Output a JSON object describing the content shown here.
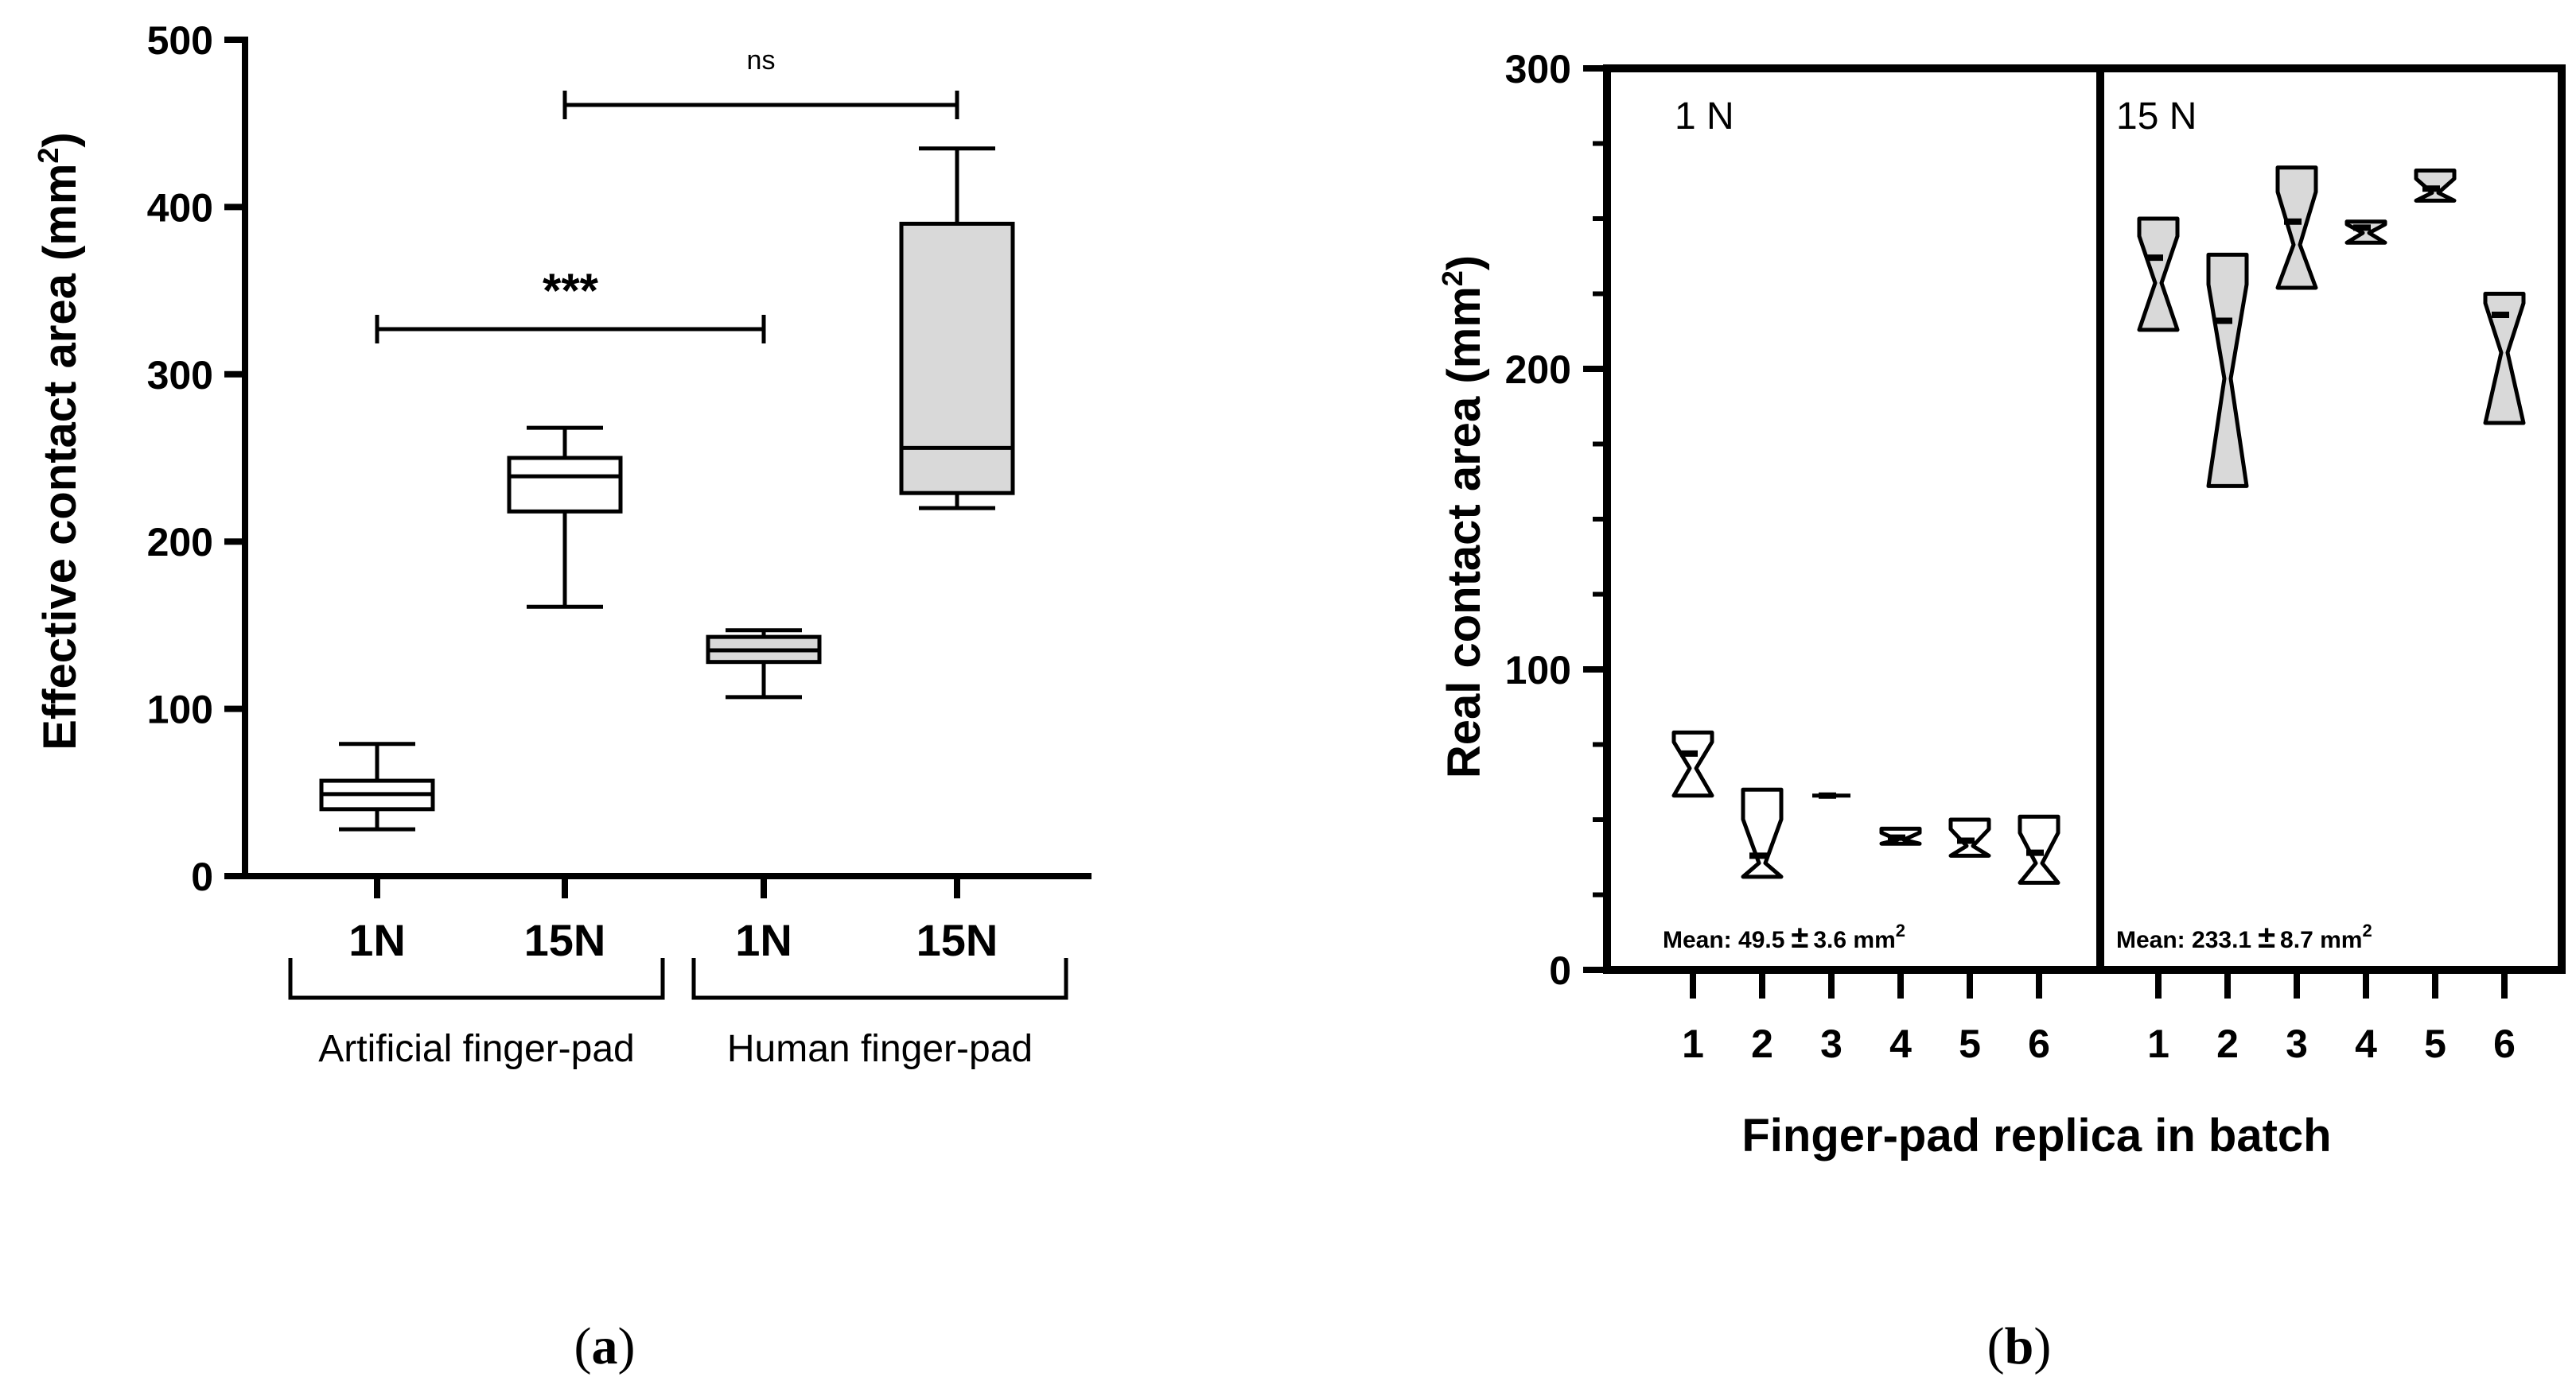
{
  "chart_data": [
    {
      "type": "box",
      "panel_label": "(a)",
      "ylabel": "Effective contact area (mm",
      "ylabel_sup": "2",
      "ylabel_close": ")",
      "ylim": [
        0,
        500
      ],
      "yticks": [
        "0",
        "100",
        "200",
        "300",
        "400",
        "500"
      ],
      "categories": [
        "1N",
        "15N",
        "1N",
        "15N"
      ],
      "groups": [
        {
          "label": "Artificial finger-pad",
          "categories": [
            0,
            1
          ]
        },
        {
          "label": "Human finger-pad",
          "categories": [
            2,
            3
          ]
        }
      ],
      "boxes": [
        {
          "category": "1N",
          "group": "Artificial finger-pad",
          "min": 28,
          "q1": 40,
          "median": 49,
          "q3": 57,
          "max": 79,
          "fill": "#ffffff"
        },
        {
          "category": "15N",
          "group": "Artificial finger-pad",
          "min": 161,
          "q1": 218,
          "median": 239,
          "q3": 250,
          "max": 268,
          "fill": "#ffffff"
        },
        {
          "category": "1N",
          "group": "Human finger-pad",
          "min": 107,
          "q1": 128,
          "median": 135,
          "q3": 143,
          "max": 147,
          "fill": "#d9d9d9"
        },
        {
          "category": "15N",
          "group": "Human finger-pad",
          "min": 220,
          "q1": 229,
          "median": 256,
          "q3": 390,
          "max": 435,
          "fill": "#d9d9d9"
        }
      ],
      "annotations": [
        {
          "text": "***",
          "from": 0,
          "to": 2,
          "y": 327
        },
        {
          "text": "ns",
          "from": 1,
          "to": 3,
          "y": 461
        }
      ]
    },
    {
      "type": "violin",
      "panel_label": "(b)",
      "ylabel": "Real contact area (mm",
      "ylabel_sup": "2",
      "ylabel_close": ")",
      "xlabel": "Finger-pad replica in batch",
      "ylim": [
        0,
        300
      ],
      "yticks": [
        "0",
        "100",
        "200",
        "300"
      ],
      "facets": [
        {
          "title": "1 N",
          "mean_text": "Mean: 49.5",
          "mean_pm": "±",
          "mean_unit": "3.6 mm",
          "mean_sup": "2",
          "fill": "#ffffff",
          "replicas": [
            {
              "label": "1",
              "min": 58,
              "max": 79,
              "median": 72
            },
            {
              "label": "2",
              "min": 31,
              "max": 60,
              "median": 38
            },
            {
              "label": "3",
              "min": 58,
              "max": 58,
              "median": 58
            },
            {
              "label": "4",
              "min": 42,
              "max": 47,
              "median": 44
            },
            {
              "label": "5",
              "min": 38,
              "max": 50,
              "median": 43
            },
            {
              "label": "6",
              "min": 29,
              "max": 51,
              "median": 39
            }
          ]
        },
        {
          "title": "15 N",
          "mean_text": "Mean: 233.1",
          "mean_pm": "±",
          "mean_unit": "8.7 mm",
          "mean_sup": "2",
          "fill": "#d9d9d9",
          "replicas": [
            {
              "label": "1",
              "min": 213,
              "max": 250,
              "median": 237
            },
            {
              "label": "2",
              "min": 161,
              "max": 238,
              "median": 216
            },
            {
              "label": "3",
              "min": 227,
              "max": 267,
              "median": 249
            },
            {
              "label": "4",
              "min": 242,
              "max": 249,
              "median": 247
            },
            {
              "label": "5",
              "min": 256,
              "max": 266,
              "median": 260
            },
            {
              "label": "6",
              "min": 182,
              "max": 225,
              "median": 218
            }
          ]
        }
      ]
    }
  ]
}
